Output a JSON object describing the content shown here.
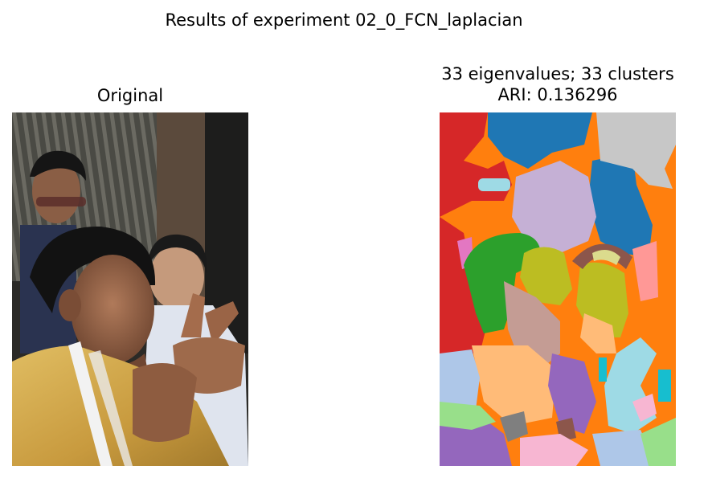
{
  "figure": {
    "suptitle": "Results of experiment 02_0_FCN_laplacian"
  },
  "panels": [
    {
      "title": "Original",
      "content": "photo"
    },
    {
      "title_line1": "33 eigenvalues; 33 clusters",
      "title_line2": "ARI: 0.136296",
      "content": "segmentation",
      "palette": [
        "#d62728",
        "#1f77b4",
        "#ff7f0e",
        "#c7c7c7",
        "#c5b0d5",
        "#aec7e8",
        "#2ca02c",
        "#bcbd22",
        "#8c564b",
        "#ff9896",
        "#c49c94",
        "#ffbb78",
        "#9467bd",
        "#9edae5",
        "#17becf",
        "#e377c2",
        "#f7b6d2",
        "#7f7f7f",
        "#98df8a",
        "#dbdb8d"
      ]
    }
  ]
}
